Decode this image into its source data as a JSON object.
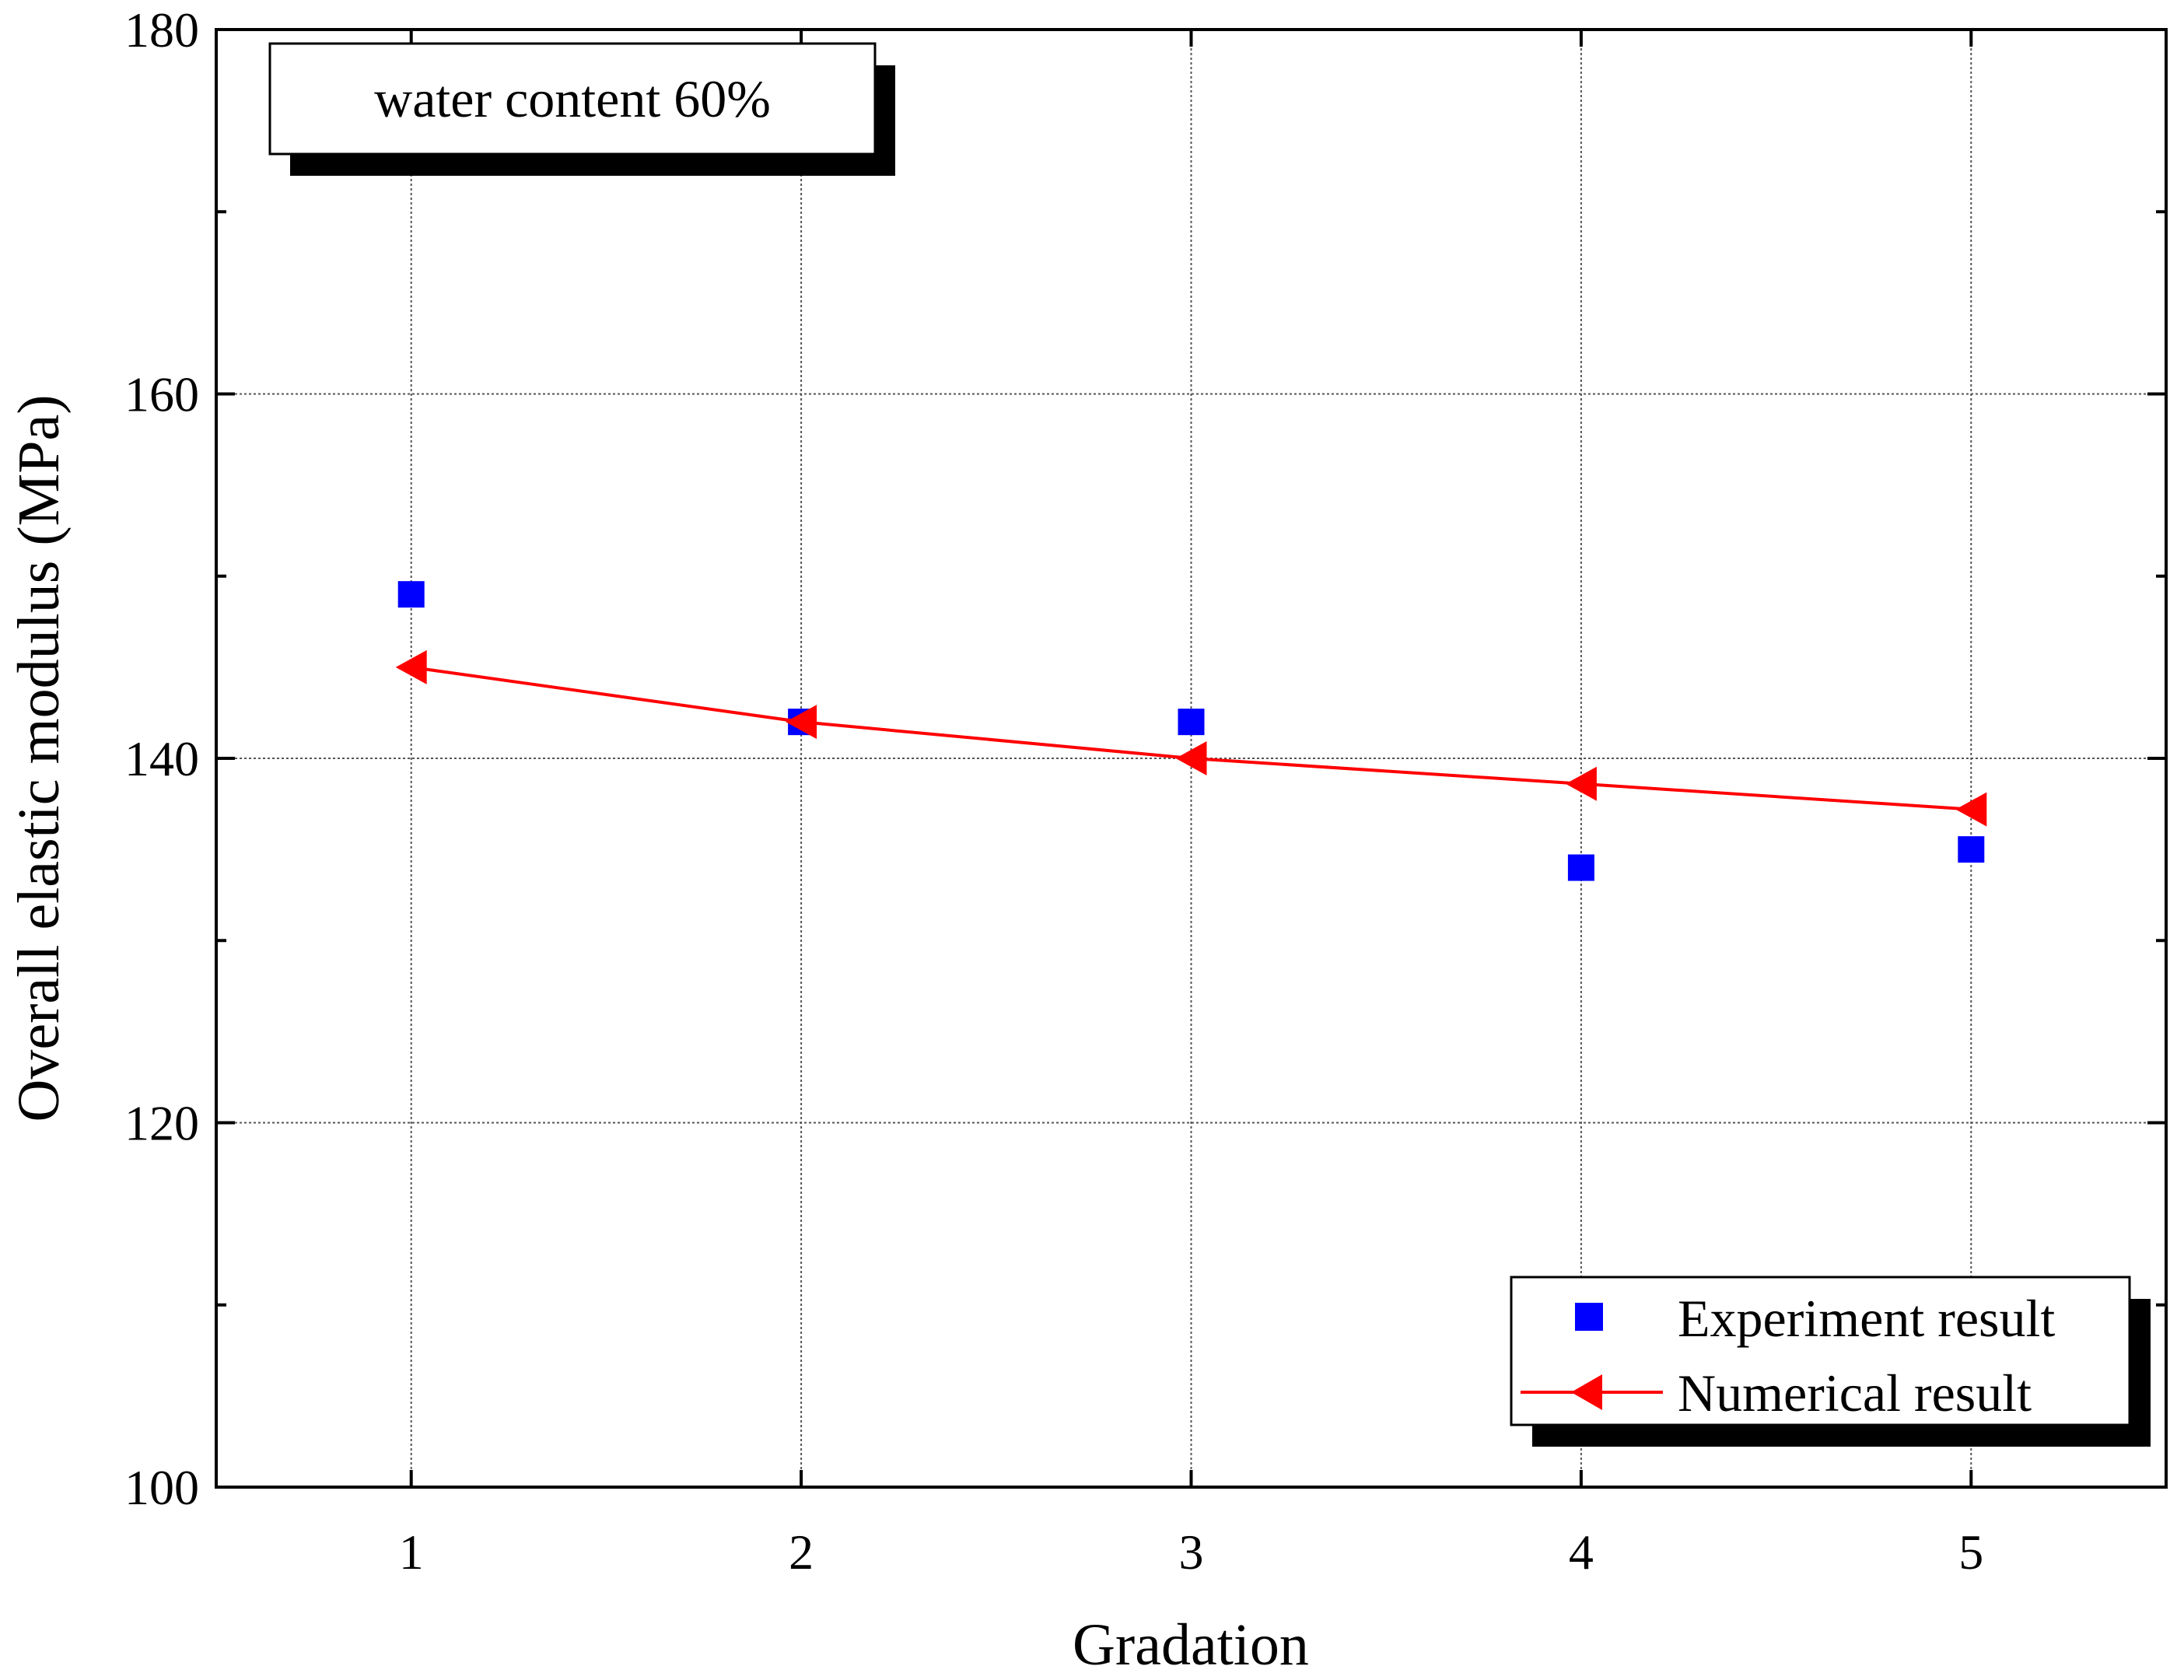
{
  "chart_data": {
    "type": "scatter+line",
    "title": "",
    "annotation": "water content 60%",
    "xlabel": "Gradation",
    "ylabel": "Overall elastic modulus (MPa)",
    "xlim": [
      0.5,
      5.5
    ],
    "ylim": [
      100,
      180
    ],
    "xticks": [
      1,
      2,
      3,
      4,
      5
    ],
    "xtick_labels": [
      "1",
      "2",
      "3",
      "4",
      "5"
    ],
    "yticks_major": [
      100,
      120,
      140,
      160,
      180
    ],
    "ytick_labels": [
      "100",
      "120",
      "140",
      "160",
      "180"
    ],
    "yticks_minor": [
      110,
      130,
      150,
      170
    ],
    "grid": true,
    "legend_position": "bottom-right",
    "series": [
      {
        "name": "Experiment result",
        "style": "markers",
        "marker": "square",
        "color": "#0000ff",
        "x": [
          1,
          2,
          3,
          4,
          5
        ],
        "values": [
          149,
          142,
          142,
          134,
          135
        ]
      },
      {
        "name": "Numerical result",
        "style": "line+markers",
        "marker": "left-triangle",
        "color": "#ff0000",
        "x": [
          1,
          2,
          3,
          4,
          5
        ],
        "values": [
          145,
          142,
          140,
          138.6,
          137.2
        ]
      }
    ]
  }
}
